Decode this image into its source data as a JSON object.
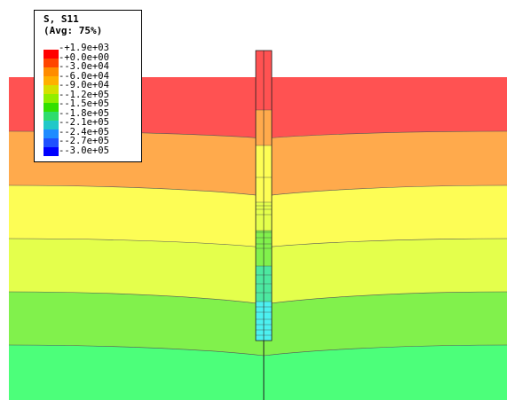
{
  "legend": {
    "title": "S, S11",
    "subtitle": "(Avg: 75%)",
    "labels": [
      "+1.9e+03",
      "+0.0e+00",
      "-3.0e+04",
      "-6.0e+04",
      "-9.0e+04",
      "-1.2e+05",
      "-1.5e+05",
      "-1.8e+05",
      "-2.1e+05",
      "-2.4e+05",
      "-2.7e+05",
      "-3.0e+05"
    ],
    "colors": [
      "#ff0000",
      "#ff4500",
      "#ff8c00",
      "#ffb000",
      "#d4e000",
      "#90ee00",
      "#32e000",
      "#2ddc6e",
      "#20c8c8",
      "#1f8cff",
      "#1f50ff",
      "#0000ff"
    ]
  },
  "soil_layers": [
    {
      "color": "#ff5252"
    },
    {
      "color": "#ffaa4c"
    },
    {
      "color": "#fdfd55"
    },
    {
      "color": "#e4ff4c"
    },
    {
      "color": "#81f14c"
    },
    {
      "color": "#4cff7a"
    }
  ],
  "pile": {
    "segments": [
      {
        "color": "#ff5252"
      },
      {
        "color": "#ffaa4c"
      },
      {
        "color": "#fdfd55"
      },
      {
        "color": "#e4ff4c"
      },
      {
        "color": "#81f14c"
      },
      {
        "color": "#4ce8a0"
      },
      {
        "color": "#4cf0f0"
      }
    ]
  }
}
